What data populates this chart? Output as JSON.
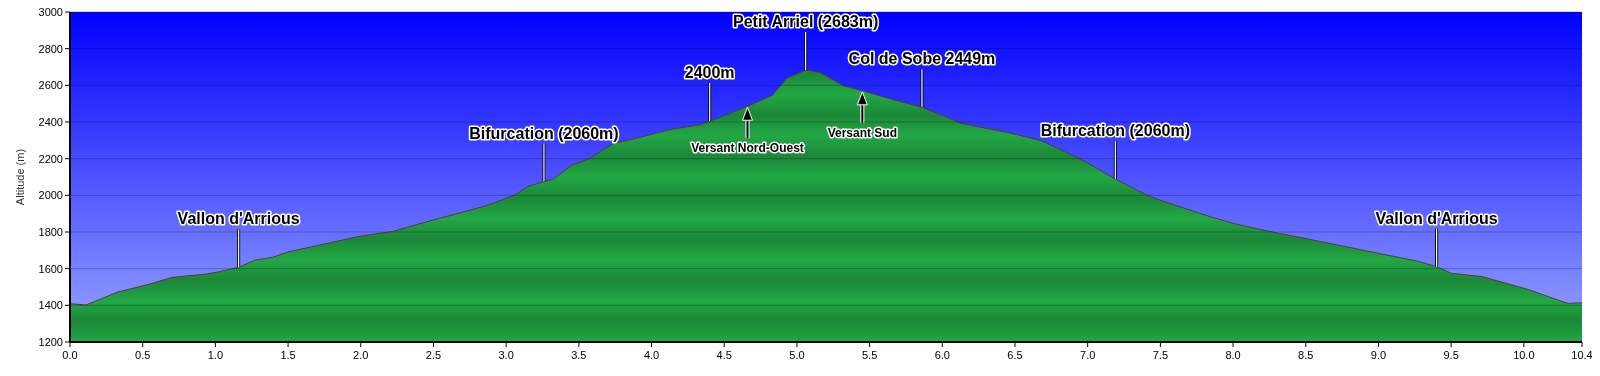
{
  "chart_data": {
    "type": "area",
    "ylabel": "Altitude (m)",
    "xlim": [
      0,
      10.4
    ],
    "ylim": [
      1200,
      3000
    ],
    "xticks": [
      {
        "value": 0,
        "label": "0.0"
      },
      {
        "value": 0.5,
        "label": "0.5"
      },
      {
        "value": 1,
        "label": "1.0"
      },
      {
        "value": 1.5,
        "label": "1.5"
      },
      {
        "value": 2,
        "label": "2.0"
      },
      {
        "value": 2.5,
        "label": "2.5"
      },
      {
        "value": 3,
        "label": "3.0"
      },
      {
        "value": 3.5,
        "label": "3.5"
      },
      {
        "value": 4,
        "label": "4.0"
      },
      {
        "value": 4.5,
        "label": "4.5"
      },
      {
        "value": 5,
        "label": "5.0"
      },
      {
        "value": 5.5,
        "label": "5.5"
      },
      {
        "value": 6,
        "label": "6.0"
      },
      {
        "value": 6.5,
        "label": "6.5"
      },
      {
        "value": 7,
        "label": "7.0"
      },
      {
        "value": 7.5,
        "label": "7.5"
      },
      {
        "value": 8,
        "label": "8.0"
      },
      {
        "value": 8.5,
        "label": "8.5"
      },
      {
        "value": 9,
        "label": "9.0"
      },
      {
        "value": 9.5,
        "label": "9.5"
      },
      {
        "value": 10,
        "label": "10.0"
      },
      {
        "value": 10.4,
        "label": "10.4"
      }
    ],
    "yticks": [
      1200,
      1400,
      1600,
      1800,
      2000,
      2200,
      2400,
      2600,
      2800,
      3000
    ],
    "grid": "y",
    "series": [
      {
        "color": "#22a845",
        "x": [
          0,
          0.11,
          0.33,
          0.55,
          0.7,
          0.94,
          1.03,
          1.16,
          1.27,
          1.39,
          1.5,
          1.98,
          2.22,
          2.47,
          2.87,
          3.06,
          3.15,
          3.26,
          3.32,
          3.45,
          3.57,
          3.74,
          3.85,
          4.14,
          4.33,
          4.4,
          4.51,
          4.66,
          4.83,
          4.93,
          5.06,
          5.16,
          5.32,
          5.45,
          5.69,
          5.86,
          6.14,
          6.45,
          6.68,
          6.84,
          7,
          7.19,
          7.4,
          7.5,
          7.86,
          8.02,
          8.3,
          8.51,
          9.01,
          9.27,
          9.4,
          9.5,
          9.71,
          10.02,
          10.3,
          10.4
        ],
        "values": [
          1409,
          1402,
          1473,
          1516,
          1552,
          1571,
          1584,
          1607,
          1646,
          1661,
          1691,
          1775,
          1803,
          1859,
          1945,
          2002,
          2048,
          2075,
          2087,
          2164,
          2200,
          2284,
          2302,
          2361,
          2384,
          2405,
          2437,
          2486,
          2545,
          2638,
          2683,
          2670,
          2598,
          2570,
          2516,
          2480,
          2391,
          2343,
          2298,
          2239,
          2177,
          2088,
          2004,
          1973,
          1879,
          1843,
          1795,
          1763,
          1682,
          1641,
          1611,
          1575,
          1557,
          1489,
          1411,
          1414
        ]
      }
    ],
    "annotations": [
      {
        "text": "Vallon d'Arrious",
        "x": 1.16,
        "y": 1607
      },
      {
        "text": "Bifurcation (2060m)",
        "x": 3.26,
        "y": 2075
      },
      {
        "text": "2400m",
        "x": 4.4,
        "y": 2405
      },
      {
        "text": "Versant Nord-Ouest",
        "x": 4.66,
        "y": 2486
      },
      {
        "text": "Petit Arriel (2683m)",
        "x": 5.06,
        "y": 2683
      },
      {
        "text": "Versant Sud",
        "x": 5.45,
        "y": 2570
      },
      {
        "text": "Col de Sobe 2449m",
        "x": 5.86,
        "y": 2480
      },
      {
        "text": "Bifurcation (2060m)",
        "x": 7.19,
        "y": 2088
      },
      {
        "text": "Vallon d'Arrious",
        "x": 9.4,
        "y": 1611
      }
    ]
  }
}
